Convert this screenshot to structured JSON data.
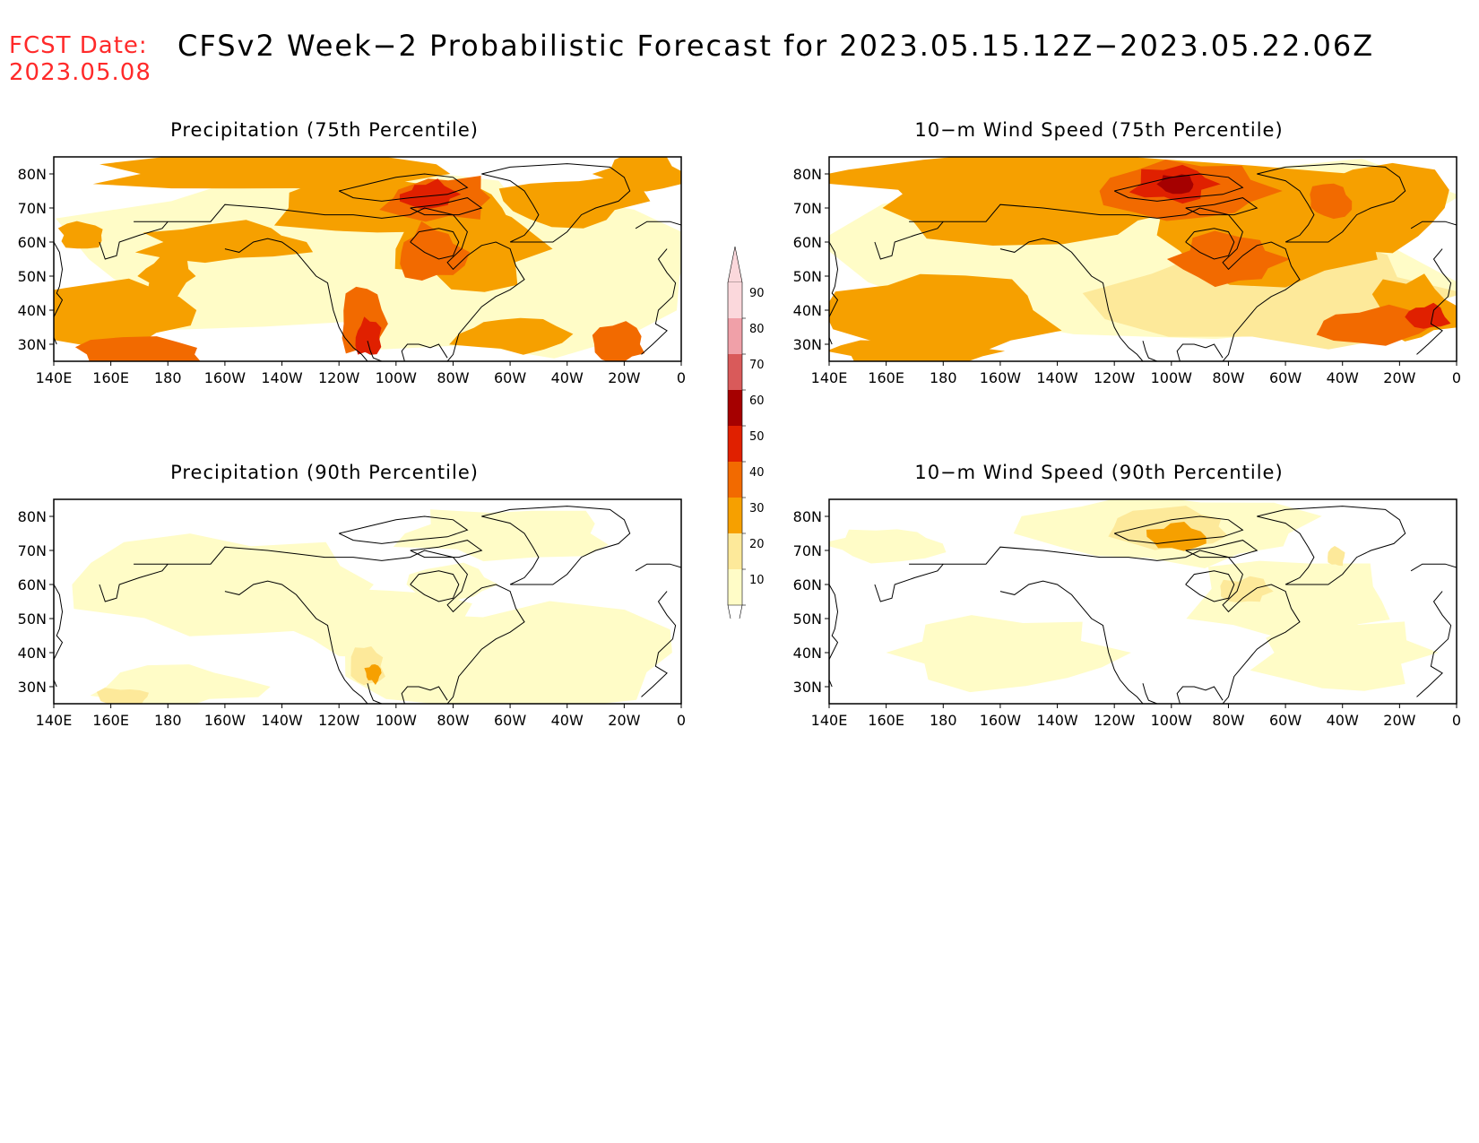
{
  "header": {
    "fcst_label": "FCST Date:",
    "fcst_date": "2023.05.08",
    "title": "CFSv2 Week−2 Probabilistic Forecast for 2023.05.15.12Z−2023.05.22.06Z"
  },
  "axes": {
    "lon_ticks": [
      "140E",
      "160E",
      "180",
      "160W",
      "140W",
      "120W",
      "100W",
      "80W",
      "60W",
      "40W",
      "20W",
      "0"
    ],
    "lat_ticks": [
      "80N",
      "70N",
      "60N",
      "50N",
      "40N",
      "30N"
    ]
  },
  "panels": [
    {
      "id": "precip75",
      "title": "Precipitation (75th Percentile)",
      "intensity": "high"
    },
    {
      "id": "wind75",
      "title": "10−m Wind Speed (75th Percentile)",
      "intensity": "high"
    },
    {
      "id": "precip90",
      "title": "Precipitation (90th Percentile)",
      "intensity": "low"
    },
    {
      "id": "wind90",
      "title": "10−m Wind Speed (90th Percentile)",
      "intensity": "low"
    }
  ],
  "colorbar": {
    "levels": [
      "10",
      "20",
      "30",
      "40",
      "50",
      "60",
      "70",
      "80",
      "90"
    ],
    "colors": [
      "#fffcc7",
      "#fde99a",
      "#f6a000",
      "#f26a00",
      "#e02000",
      "#a50000",
      "#d95a5a",
      "#f0a0a8",
      "#fbd8dc"
    ]
  }
}
